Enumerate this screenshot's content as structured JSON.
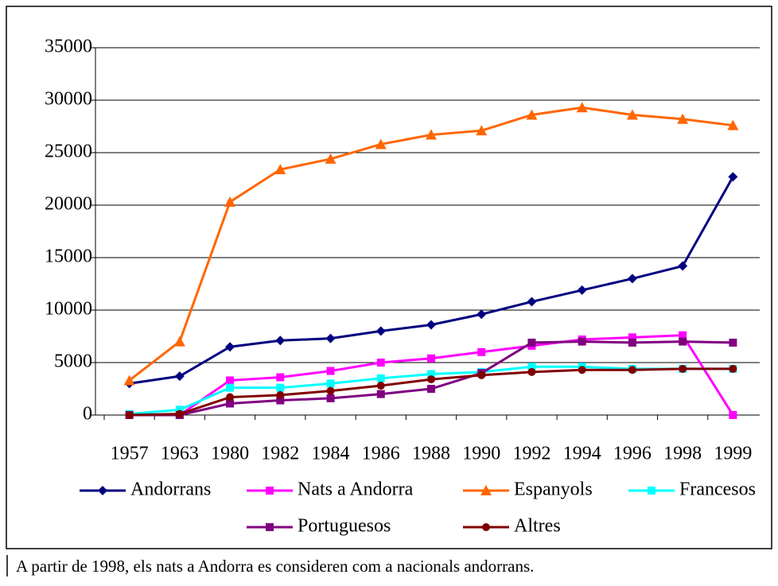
{
  "chart_data": {
    "type": "line",
    "categories": [
      "1957",
      "1963",
      "1980",
      "1982",
      "1984",
      "1986",
      "1988",
      "1990",
      "1992",
      "1994",
      "1996",
      "1998",
      "1999"
    ],
    "series": [
      {
        "name": "Andorrans",
        "color": "#000080",
        "marker": "diamond",
        "values": [
          3000,
          3700,
          6500,
          7100,
          7300,
          8000,
          8600,
          9600,
          10800,
          11900,
          13000,
          14200,
          22700
        ]
      },
      {
        "name": "Nats a Andorra",
        "color": "#ff00ff",
        "marker": "square",
        "values": [
          0,
          0,
          3300,
          3600,
          4200,
          5000,
          5400,
          6000,
          6600,
          7200,
          7400,
          7600,
          0
        ]
      },
      {
        "name": "Espanyols",
        "color": "#ff6600",
        "marker": "triangle",
        "values": [
          3300,
          7000,
          20300,
          23400,
          24400,
          25800,
          26700,
          27100,
          28600,
          29300,
          28600,
          28200,
          27600
        ]
      },
      {
        "name": "Francesos",
        "color": "#00ffff",
        "marker": "square",
        "values": [
          100,
          500,
          2600,
          2600,
          3000,
          3500,
          3900,
          4100,
          4600,
          4600,
          4400,
          4400,
          4400
        ]
      },
      {
        "name": "Portuguesos",
        "color": "#800080",
        "marker": "square",
        "values": [
          0,
          0,
          1100,
          1400,
          1600,
          2000,
          2500,
          4000,
          6900,
          7000,
          6900,
          7000,
          6900
        ]
      },
      {
        "name": "Altres",
        "color": "#800000",
        "marker": "circle",
        "values": [
          0,
          100,
          1700,
          1900,
          2300,
          2800,
          3400,
          3800,
          4100,
          4300,
          4300,
          4400,
          4400
        ]
      }
    ],
    "ylim": [
      0,
      35000
    ],
    "yticks": [
      0,
      5000,
      10000,
      15000,
      20000,
      25000,
      30000,
      35000
    ],
    "grid": true,
    "note": "A partir de 1998, els nats a Andorra es consideren com a nacionals andorrans."
  }
}
